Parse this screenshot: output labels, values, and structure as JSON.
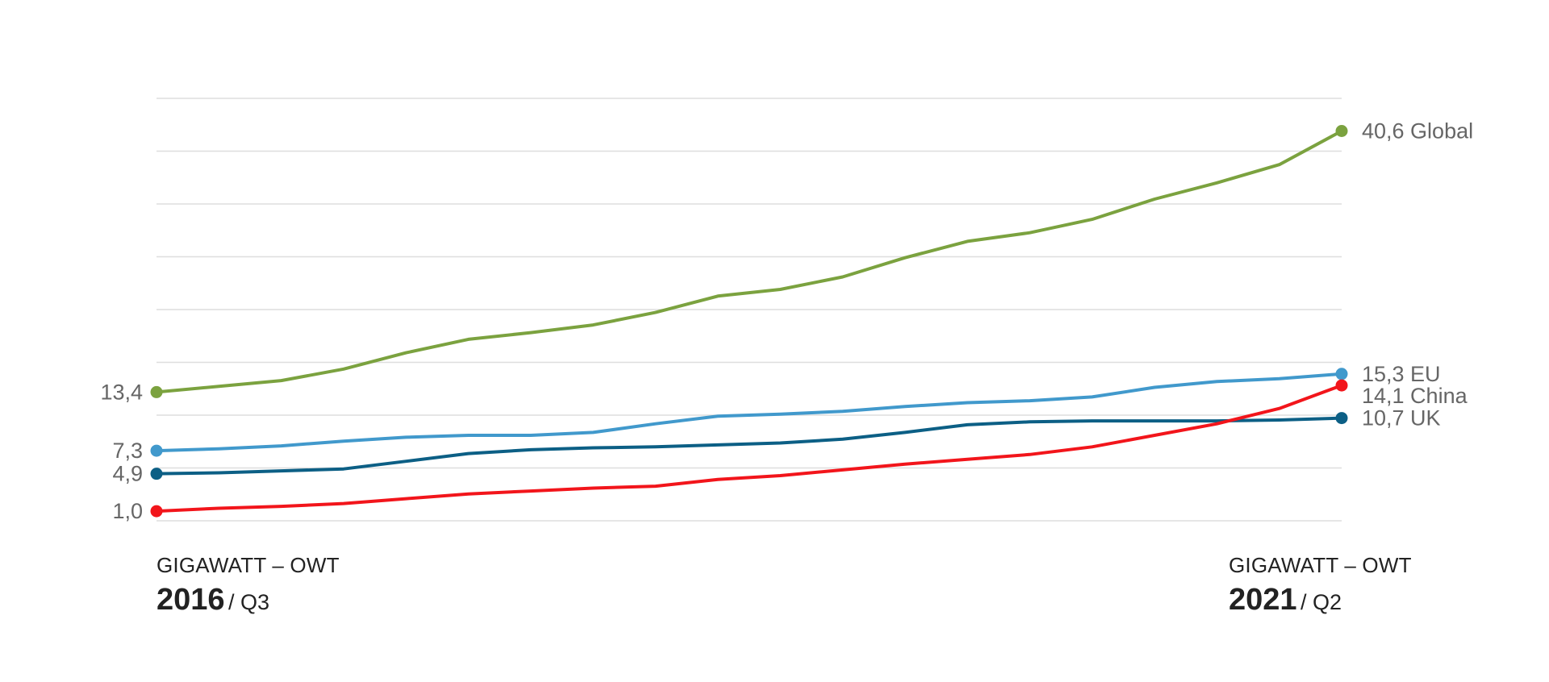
{
  "chart_data": {
    "type": "line",
    "start": {
      "unit": "GIGAWATT – OWT",
      "year": "2016",
      "quarter": "/ Q3"
    },
    "end": {
      "unit": "GIGAWATT – OWT",
      "year": "2021",
      "quarter": "/ Q2"
    },
    "ylim": [
      0,
      44
    ],
    "grid": true,
    "series": [
      {
        "name": "Global",
        "color": "#7ba23f",
        "start_label": "13,4",
        "end_label": "40,6 Global",
        "values": [
          13.4,
          14.0,
          14.6,
          15.8,
          17.5,
          18.9,
          19.6,
          20.4,
          21.7,
          23.4,
          24.1,
          25.4,
          27.4,
          29.1,
          30.0,
          31.4,
          33.5,
          35.2,
          37.1,
          40.6
        ]
      },
      {
        "name": "EU",
        "color": "#4199cc",
        "start_label": "7,3",
        "end_label": "15,3 EU",
        "values": [
          7.3,
          7.5,
          7.8,
          8.3,
          8.7,
          8.9,
          8.9,
          9.2,
          10.1,
          10.9,
          11.1,
          11.4,
          11.9,
          12.3,
          12.5,
          12.9,
          13.9,
          14.5,
          14.8,
          15.3
        ]
      },
      {
        "name": "UK",
        "color": "#0c5f85",
        "start_label": "4,9",
        "end_label": "10,7 UK",
        "values": [
          4.9,
          5.0,
          5.2,
          5.4,
          6.2,
          7.0,
          7.4,
          7.6,
          7.7,
          7.9,
          8.1,
          8.5,
          9.2,
          10.0,
          10.3,
          10.4,
          10.4,
          10.4,
          10.5,
          10.7
        ]
      },
      {
        "name": "China",
        "color": "#f2151b",
        "start_label": "1,0",
        "end_label": "14,1 China",
        "values": [
          1.0,
          1.3,
          1.5,
          1.8,
          2.3,
          2.8,
          3.1,
          3.4,
          3.6,
          4.3,
          4.7,
          5.3,
          5.9,
          6.4,
          6.9,
          7.7,
          8.9,
          10.1,
          11.7,
          14.1
        ]
      }
    ]
  }
}
